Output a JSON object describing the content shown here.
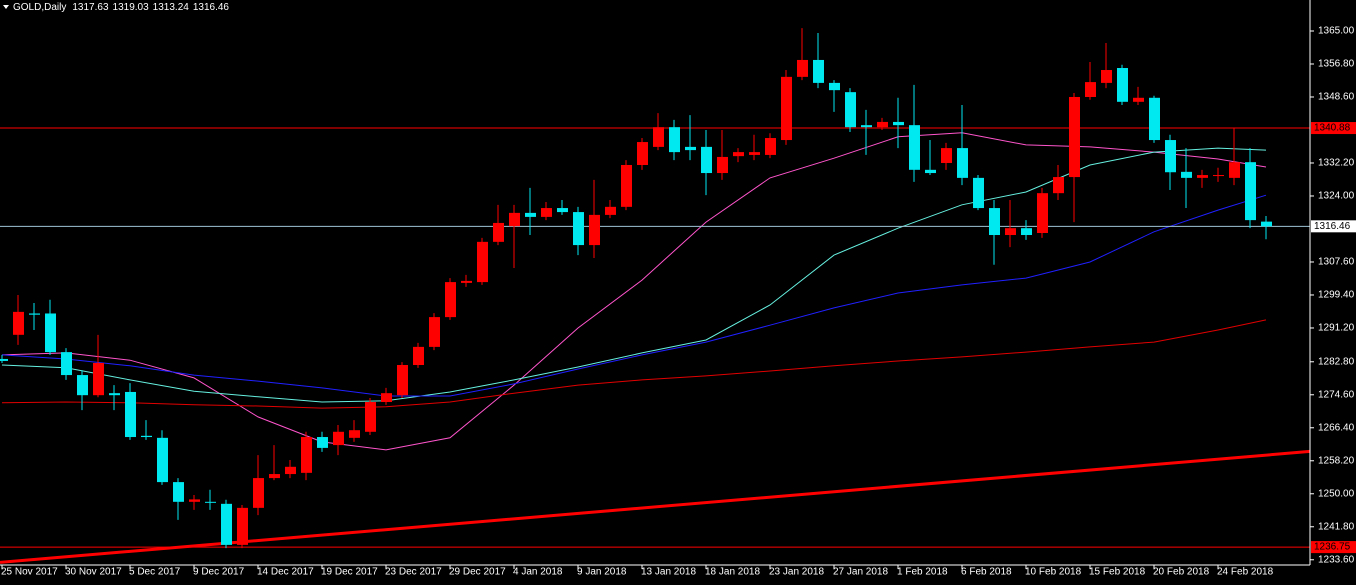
{
  "chart_data": {
    "type": "candlestick",
    "title": "GOLD,Daily",
    "x": [
      "25 Nov 2017",
      null,
      null,
      null,
      "30 Nov 2017",
      null,
      null,
      null,
      "5 Dec 2017",
      null,
      null,
      null,
      "9 Dec 2017",
      null,
      null,
      null,
      "14 Dec 2017",
      null,
      null,
      null,
      "19 Dec 2017",
      null,
      null,
      null,
      "23 Dec 2017",
      null,
      null,
      null,
      "29 Dec 2017",
      null,
      null,
      null,
      "4 Jan 2018",
      null,
      null,
      null,
      "9 Jan 2018",
      null,
      null,
      null,
      "13 Jan 2018",
      null,
      null,
      null,
      "18 Jan 2018",
      null,
      null,
      null,
      "23 Jan 2018",
      null,
      null,
      null,
      "27 Jan 2018",
      null,
      null,
      null,
      "1 Feb 2018",
      null,
      null,
      null,
      "6 Feb 2018",
      null,
      null,
      null,
      "10 Feb 2018",
      null,
      null,
      null,
      "15 Feb 2018",
      null,
      null,
      null,
      "20 Feb 2018",
      null,
      null,
      null,
      "24 Feb 2018",
      null,
      null,
      null
    ],
    "open": [
      1283.5,
      1289.5,
      1294.8,
      1294.8,
      1285.2,
      1279.5,
      1274.5,
      1275.0,
      1275.3,
      1264.4,
      1263.9,
      1252.9,
      1248.0,
      1248.0,
      1247.5,
      1237.3,
      1246.5,
      1253.9,
      1254.9,
      1255.2,
      1264.1,
      1262.1,
      1263.9,
      1265.4,
      1272.8,
      1274.5,
      1282.0,
      1286.5,
      1293.9,
      1302.4,
      1302.6,
      1312.6,
      1316.5,
      1319.8,
      1318.8,
      1321.0,
      1320.0,
      1311.8,
      1319.3,
      1321.3,
      1331.7,
      1336.2,
      1341.1,
      1336.2,
      1336.2,
      1329.7,
      1333.9,
      1334.2,
      1334.2,
      1337.9,
      1353.6,
      1357.8,
      1352.1,
      1349.8,
      1341.6,
      1341.1,
      1342.4,
      1341.6,
      1330.5,
      1332.2,
      1335.9,
      1328.5,
      1321.0,
      1314.3,
      1316.0,
      1314.8,
      1324.7,
      1328.7,
      1348.6,
      1352.1,
      1355.8,
      1347.4,
      1348.4,
      1337.9,
      1330.0,
      1328.5,
      1329.0,
      1328.5,
      1332.4,
      1317.63
    ],
    "high": [
      1284.5,
      1299.4,
      1297.4,
      1298.2,
      1286.2,
      1280.7,
      1289.5,
      1277.0,
      1277.5,
      1268.3,
      1265.8,
      1253.9,
      1249.7,
      1251.0,
      1248.5,
      1247.2,
      1259.6,
      1262.1,
      1258.4,
      1265.4,
      1265.4,
      1267.1,
      1268.3,
      1273.8,
      1276.3,
      1282.7,
      1287.5,
      1294.9,
      1303.6,
      1304.4,
      1313.6,
      1321.8,
      1321.8,
      1326.0,
      1322.5,
      1323.0,
      1321.3,
      1328.0,
      1323.0,
      1332.9,
      1338.4,
      1344.6,
      1342.9,
      1344.1,
      1340.4,
      1340.4,
      1335.9,
      1339.2,
      1339.6,
      1355.3,
      1365.7,
      1364.5,
      1352.8,
      1350.8,
      1345.4,
      1343.4,
      1348.4,
      1351.6,
      1337.9,
      1337.2,
      1346.6,
      1329.2,
      1323.0,
      1323.0,
      1318.0,
      1326.0,
      1331.7,
      1349.6,
      1357.3,
      1362.0,
      1356.6,
      1351.1,
      1348.9,
      1339.2,
      1335.9,
      1330.5,
      1331.0,
      1340.9,
      1335.9,
      1319.03
    ],
    "low": [
      1282.5,
      1287.0,
      1290.7,
      1284.5,
      1278.3,
      1270.8,
      1274.0,
      1270.8,
      1263.4,
      1263.4,
      1252.2,
      1243.5,
      1246.0,
      1246.0,
      1236.5,
      1236.5,
      1244.7,
      1253.4,
      1253.9,
      1253.4,
      1260.4,
      1259.6,
      1262.9,
      1264.6,
      1272.1,
      1273.8,
      1281.3,
      1285.7,
      1293.2,
      1301.4,
      1301.9,
      1311.8,
      1306.1,
      1314.3,
      1318.0,
      1319.3,
      1309.3,
      1308.6,
      1318.5,
      1320.5,
      1330.5,
      1335.4,
      1332.9,
      1332.9,
      1324.2,
      1328.0,
      1332.4,
      1332.9,
      1333.4,
      1336.7,
      1352.8,
      1350.8,
      1344.9,
      1339.9,
      1334.2,
      1340.4,
      1335.9,
      1327.5,
      1329.2,
      1330.5,
      1326.7,
      1320.5,
      1306.9,
      1311.3,
      1313.1,
      1313.6,
      1323.0,
      1317.5,
      1347.9,
      1350.8,
      1346.6,
      1346.6,
      1337.2,
      1325.5,
      1321.0,
      1326.0,
      1327.5,
      1326.7,
      1316.0,
      1313.24
    ],
    "close": [
      1283.0,
      1295.2,
      1294.5,
      1285.2,
      1279.5,
      1274.5,
      1282.5,
      1274.5,
      1264.1,
      1264.1,
      1252.9,
      1248.0,
      1248.6,
      1247.8,
      1237.3,
      1246.5,
      1253.9,
      1254.9,
      1256.7,
      1264.1,
      1261.4,
      1265.4,
      1265.8,
      1272.8,
      1275.0,
      1282.0,
      1286.5,
      1293.9,
      1302.6,
      1302.9,
      1312.6,
      1317.3,
      1319.8,
      1318.8,
      1321.0,
      1320.0,
      1311.8,
      1319.3,
      1321.3,
      1331.7,
      1337.4,
      1341.1,
      1334.9,
      1335.4,
      1329.7,
      1333.7,
      1334.9,
      1334.9,
      1338.4,
      1353.6,
      1357.8,
      1352.1,
      1350.3,
      1341.1,
      1341.1,
      1342.4,
      1341.6,
      1330.5,
      1329.7,
      1335.9,
      1328.5,
      1321.0,
      1314.3,
      1316.0,
      1314.3,
      1324.7,
      1328.7,
      1348.6,
      1352.3,
      1355.3,
      1347.4,
      1348.4,
      1337.9,
      1329.9,
      1328.5,
      1329.2,
      1329.2,
      1332.4,
      1318.0,
      1316.46
    ],
    "up_color": "#ff0000",
    "down_color": "#00e8f0",
    "moving_averages": [
      {
        "color": "#ff55cc",
        "x": [
          0,
          4,
          8,
          12,
          16,
          20,
          24,
          28,
          32,
          36,
          40,
          44,
          48,
          52,
          56,
          60,
          64,
          68,
          72,
          76,
          79
        ],
        "values": [
          1284.5,
          1285.0,
          1283.2,
          1278.8,
          1269.1,
          1262.9,
          1260.9,
          1263.9,
          1277.0,
          1291.2,
          1303.1,
          1317.5,
          1328.5,
          1333.4,
          1338.7,
          1339.7,
          1336.7,
          1336.2,
          1334.9,
          1333.2,
          1331.2
        ]
      },
      {
        "color": "#66f0e0",
        "x": [
          0,
          4,
          8,
          12,
          16,
          20,
          24,
          28,
          32,
          36,
          40,
          44,
          48,
          52,
          56,
          60,
          64,
          68,
          72,
          76,
          79
        ],
        "values": [
          1282.0,
          1281.3,
          1278.3,
          1275.5,
          1274.1,
          1272.8,
          1273.1,
          1275.3,
          1278.3,
          1281.5,
          1285.0,
          1288.2,
          1296.9,
          1309.3,
          1316.0,
          1321.8,
          1325.0,
          1331.7,
          1334.9,
          1335.9,
          1335.4
        ]
      },
      {
        "color": "#2020ff",
        "x": [
          0,
          4,
          8,
          12,
          16,
          20,
          24,
          28,
          32,
          36,
          40,
          44,
          48,
          52,
          56,
          60,
          64,
          68,
          72,
          76,
          79
        ],
        "values": [
          1284.5,
          1283.5,
          1281.8,
          1279.5,
          1278.0,
          1276.3,
          1274.3,
          1274.3,
          1277.3,
          1281.0,
          1284.5,
          1287.7,
          1291.9,
          1296.2,
          1299.9,
          1301.9,
          1303.6,
          1307.6,
          1315.1,
          1320.5,
          1324.2
        ]
      },
      {
        "color": "#e00000",
        "x": [
          0,
          4,
          8,
          12,
          16,
          20,
          24,
          28,
          32,
          36,
          40,
          44,
          48,
          52,
          56,
          60,
          64,
          68,
          72,
          76,
          79
        ],
        "values": [
          1272.6,
          1272.8,
          1272.6,
          1272.1,
          1271.8,
          1271.3,
          1271.6,
          1272.8,
          1275.0,
          1277.0,
          1278.3,
          1279.3,
          1280.5,
          1281.8,
          1283.0,
          1284.0,
          1285.2,
          1286.5,
          1287.7,
          1290.7,
          1293.2
        ]
      }
    ],
    "hlines": [
      {
        "value": 1340.88,
        "color": "#ff0000"
      },
      {
        "value": 1236.75,
        "color": "#ff0000"
      }
    ],
    "bid_line_color": "#9ec4d6",
    "trendlines": [
      {
        "color": "#ff0000",
        "x": [
          0,
          79
        ],
        "values": [
          1233.0,
          1259.6
        ]
      }
    ],
    "ylim": [
      1232.3,
      1372.7
    ],
    "yticks": [
      {
        "value": 1365,
        "label": "1365.00"
      },
      {
        "value": 1356.8,
        "label": "1356.80"
      },
      {
        "value": 1348.6,
        "label": "1348.60"
      },
      {
        "value": 1332.2,
        "label": "1332.20"
      },
      {
        "value": 1324,
        "label": "1324.00"
      },
      {
        "value": 1307.6,
        "label": "1307.60"
      },
      {
        "value": 1299.4,
        "label": "1299.40"
      },
      {
        "value": 1291.2,
        "label": "1291.20"
      },
      {
        "value": 1282.8,
        "label": "1282.80"
      },
      {
        "value": 1274.6,
        "label": "1274.60"
      },
      {
        "value": 1266.4,
        "label": "1266.40"
      },
      {
        "value": 1258.2,
        "label": "1258.20"
      },
      {
        "value": 1250,
        "label": "1250.00"
      },
      {
        "value": 1241.8,
        "label": "1241.80"
      },
      {
        "value": 1233.6,
        "label": "1233.60"
      }
    ]
  }
}
